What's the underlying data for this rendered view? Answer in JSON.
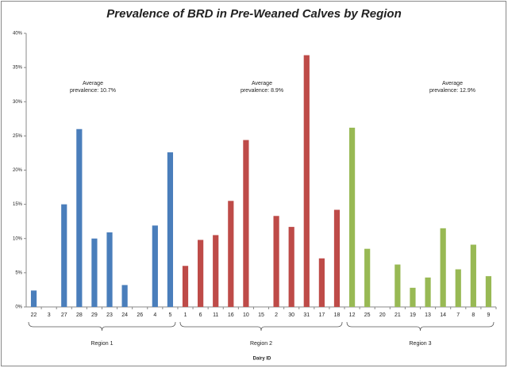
{
  "chart_data": {
    "type": "bar",
    "title": "Prevalence of BRD in Pre-Weaned Calves by Region",
    "x_label": "Dairy ID",
    "ylim": [
      0,
      40
    ],
    "yticks": [
      {
        "value": 0,
        "label": "0%"
      },
      {
        "value": 5,
        "label": "5%"
      },
      {
        "value": 10,
        "label": "10%"
      },
      {
        "value": 15,
        "label": "15%"
      },
      {
        "value": 20,
        "label": "20%"
      },
      {
        "value": 25,
        "label": "25%"
      },
      {
        "value": 30,
        "label": "30%"
      },
      {
        "value": 35,
        "label": "35%"
      },
      {
        "value": 40,
        "label": "40%"
      }
    ],
    "series": [
      {
        "name": "Region 1",
        "color": "#4a7ebb",
        "categories": [
          "22",
          "3",
          "27",
          "28",
          "29",
          "23",
          "24",
          "26",
          "4",
          "5"
        ],
        "values": [
          2.4,
          0,
          15,
          26,
          10,
          10.9,
          3.2,
          0,
          11.9,
          22.6
        ],
        "annotation": [
          "Average",
          "prevalence: 10.7%"
        ]
      },
      {
        "name": "Region 2",
        "color": "#be4b48",
        "categories": [
          "1",
          "6",
          "11",
          "16",
          "10",
          "15",
          "2",
          "30",
          "31",
          "17",
          "18"
        ],
        "values": [
          6,
          9.8,
          10.5,
          15.5,
          24.4,
          0,
          13.3,
          11.7,
          36.8,
          7.1,
          14.2
        ],
        "annotation": [
          "Average",
          "prevalence: 8.9%"
        ]
      },
      {
        "name": "Region 3",
        "color": "#98b954",
        "categories": [
          "12",
          "25",
          "20",
          "21",
          "19",
          "13",
          "14",
          "7",
          "8",
          "9"
        ],
        "values": [
          26.2,
          8.5,
          0,
          6.2,
          2.8,
          4.3,
          11.5,
          5.5,
          9.1,
          4.5
        ],
        "annotation": [
          "Average",
          "prevalence: 12.9%"
        ]
      }
    ]
  }
}
